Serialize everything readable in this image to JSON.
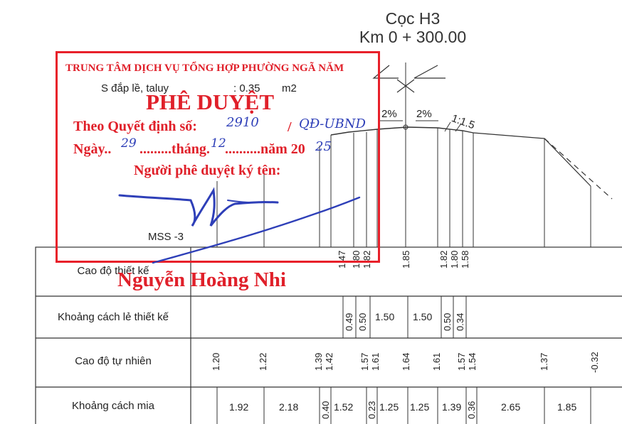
{
  "header": {
    "station": "Cọc H3",
    "km": "Km 0 + 300.00"
  },
  "section_info": {
    "s_dap_le": "S đắp lề, taluy",
    "s_value": ": 0.35",
    "unit": "m2",
    "datum": "MSS -3",
    "slope_left": "2%",
    "slope_right": "2%",
    "slope_side": "1:1.5"
  },
  "stamp": {
    "org": "TRUNG TÂM DỊCH VỤ TỔNG HỢP PHƯỜNG NGÃ NĂM",
    "title": "PHÊ DUYỆT",
    "decision_label": "Theo Quyết định số:",
    "decision_no": "2910",
    "decision_sep": "/",
    "decision_suffix": "QĐ-UBND",
    "date_prefix": "Ngày..",
    "date_day": "29",
    "date_month_label": ".........tháng.",
    "date_month": "12",
    "date_year_label": "..........năm 20",
    "date_year": "25",
    "signer_label": "Người phê duyệt ký tên:",
    "signer_name": "Nguyễn Hoàng Nhi",
    "colors": {
      "stamp": "#e8202a",
      "ink": "#2e3fb8"
    }
  },
  "table": {
    "rows": [
      {
        "label": "Cao độ thiết kế",
        "values": [
          "1.47",
          "1.80",
          "1.82",
          "1.85",
          "1.82",
          "1.80",
          "1.58"
        ]
      },
      {
        "label": "Khoảng cách lẻ thiết kế",
        "values": [
          "0.49",
          "0.50",
          "1.50",
          "1.50",
          "0.50",
          "0.34"
        ]
      },
      {
        "label": "Cao độ tự nhiên",
        "values": [
          "1.20",
          "1.22",
          "1.39",
          "1.42",
          "1.57",
          "1.61",
          "1.64",
          "1.61",
          "1.57",
          "1.54",
          "1.37",
          "-0.32"
        ]
      },
      {
        "label": "Khoảng cách mia",
        "values": [
          "1.92",
          "2.18",
          "0.40",
          "1.52",
          "0.23",
          "1.25",
          "1.25",
          "1.39",
          "0.36",
          "2.65",
          "1.85"
        ]
      }
    ]
  }
}
